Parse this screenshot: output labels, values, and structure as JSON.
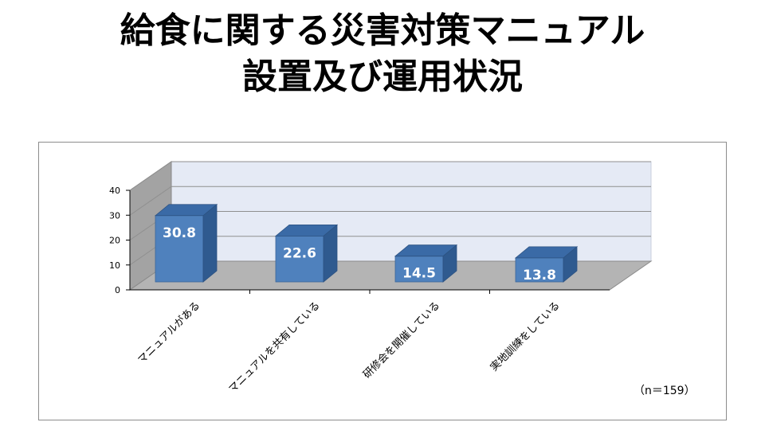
{
  "title_line1": "給食に関する災害対策マニュアル",
  "title_line2": "設置及び運用状況",
  "note": "（n＝159）",
  "colors": {
    "bar_front": "#4f81bd",
    "bar_side": "#2f5a8f",
    "bar_top": "#3a6aa6",
    "back_wall": "#e5eaf5",
    "side_wall": "#a3a3a3",
    "floor": "#b4b4b4",
    "grid": "#8f8f8f"
  },
  "chart_data": {
    "type": "bar",
    "style": "3d",
    "categories": [
      "マニュアルがある",
      "マニュアルを共有している",
      "研修会を開催している",
      "実地訓練をしている"
    ],
    "values": [
      30.8,
      22.6,
      14.5,
      13.8
    ],
    "value_labels": [
      "30.8",
      "22.6",
      "14.5",
      "13.8"
    ],
    "y_ticks": [
      "0",
      "10",
      "20",
      "30",
      "40"
    ],
    "ylim": [
      0,
      40
    ],
    "grid": true,
    "legend": "none"
  }
}
